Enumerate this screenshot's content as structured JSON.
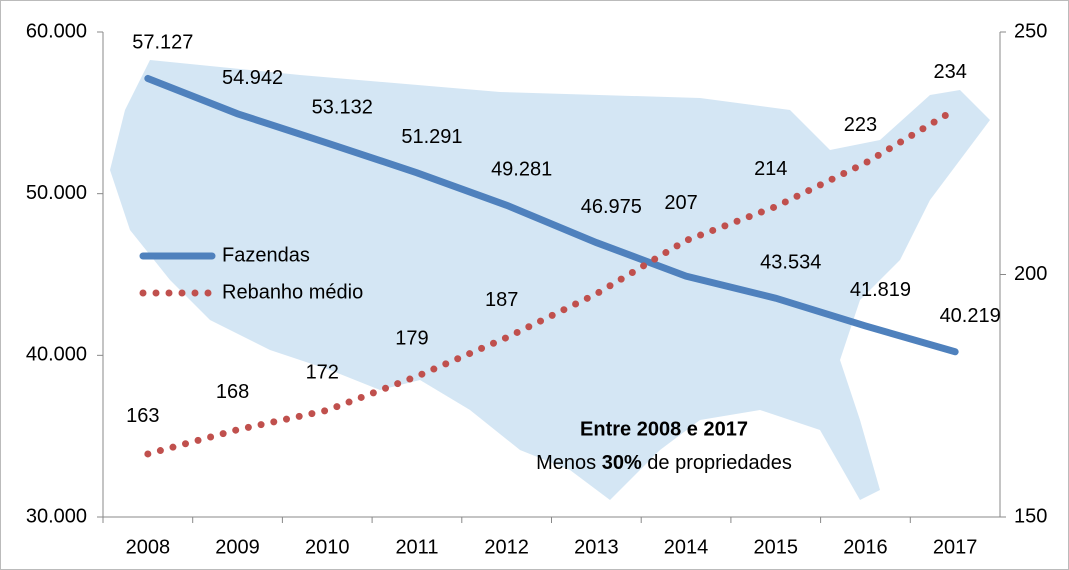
{
  "chart_data": {
    "type": "line",
    "categories": [
      "2008",
      "2009",
      "2010",
      "2011",
      "2012",
      "2013",
      "2014",
      "2015",
      "2016",
      "2017"
    ],
    "series": [
      {
        "name": "Fazendas",
        "color": "#4f81bd",
        "style": "solid",
        "values": [
          57127,
          54942,
          53132,
          51291,
          49281,
          46975,
          44900,
          43534,
          41819,
          40219
        ],
        "value_labels": [
          "57.127",
          "54.942",
          "53.132",
          "51.291",
          "49.281",
          "46.975",
          null,
          "43.534",
          "41.819",
          "40.219"
        ]
      },
      {
        "name": "Rebanho médio",
        "color": "#c0504d",
        "style": "dotted",
        "axis": "y2",
        "values": [
          163,
          168,
          172,
          179,
          187,
          196,
          207,
          214,
          223,
          234
        ],
        "value_labels": [
          "163",
          "168",
          "172",
          "179",
          "187",
          null,
          "207",
          "214",
          "223",
          "234"
        ]
      }
    ],
    "ylim": [
      30000,
      60000
    ],
    "yticks": [
      {
        "value": 30000,
        "label": "30.000"
      },
      {
        "value": 40000,
        "label": "40.000"
      },
      {
        "value": 50000,
        "label": "50.000"
      },
      {
        "value": 60000,
        "label": "60.000"
      }
    ],
    "y2lim": [
      150,
      250
    ],
    "y2ticks": [
      150,
      200,
      250
    ],
    "annotation": {
      "title": "Entre 2008 e 2017",
      "parts": [
        "Menos ",
        "30%",
        " de propriedades"
      ]
    },
    "legend": "left"
  }
}
